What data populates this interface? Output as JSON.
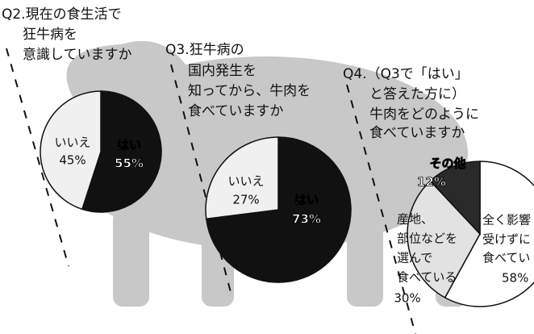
{
  "chart_data": [
    {
      "type": "pie",
      "title": [
        "Q2.現在の食生活で",
        "狂牛病を",
        "意識していますか"
      ],
      "categories": [
        [
          "はい"
        ],
        [
          "いいえ"
        ]
      ],
      "values": [
        55,
        45
      ],
      "value_labels": [
        "55%",
        "45%"
      ],
      "colors": [
        "#111111",
        "#f0f0f0"
      ]
    },
    {
      "type": "pie",
      "title": [
        "Q3.狂牛病の",
        "国内発生を",
        "知ってから、牛肉を",
        "食べていますか"
      ],
      "categories": [
        [
          "はい"
        ],
        [
          "いいえ"
        ]
      ],
      "values": [
        73,
        27
      ],
      "value_labels": [
        "73%",
        "27%"
      ],
      "colors": [
        "#111111",
        "#f0f0f0"
      ]
    },
    {
      "type": "pie",
      "title": [
        "Q4.（Q3で「はい」",
        "と答えた方に）",
        "牛肉をどのように",
        "食べていますか"
      ],
      "categories": [
        [
          "全く影響",
          "受けずに",
          "食べてい"
        ],
        [
          "産地、",
          "部位などを",
          "選んで",
          "食べている"
        ],
        [
          "その他"
        ]
      ],
      "values": [
        58,
        30,
        12
      ],
      "value_labels": [
        "58%",
        "30%",
        "12%"
      ],
      "colors": [
        "#ffffff",
        "#e2e2e2",
        "#2a2a2a"
      ]
    }
  ]
}
